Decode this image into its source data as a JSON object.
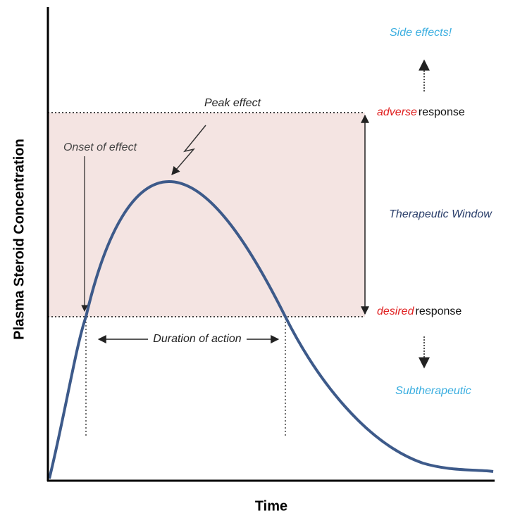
{
  "axes": {
    "y_label": "Plasma Steroid Concentration",
    "x_label": "Time"
  },
  "levels": {
    "side_effects": "Side effects!",
    "adverse_word": "adverse",
    "adverse_rest": "response",
    "window": "Therapeutic Window",
    "desired_word": "desired",
    "desired_rest": "response",
    "sub": "Subtherapeutic"
  },
  "annotations": {
    "peak": "Peak effect",
    "onset": "Onset of effect",
    "duration": "Duration of action"
  }
}
